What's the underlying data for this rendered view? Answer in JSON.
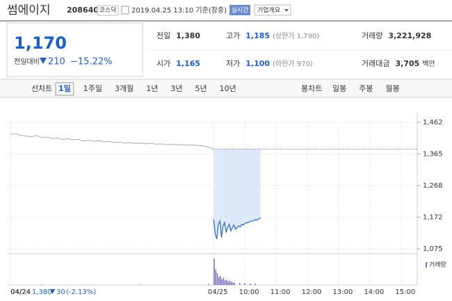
{
  "header": {
    "title": "썸에이지",
    "code": "208640",
    "market": "코스닥",
    "timestamp": "2019.04.25 13:10 기준(장중)",
    "realtime": "실시간",
    "company_info": "기업개요"
  },
  "quote": {
    "price": "1,170",
    "change_label": "전일대비",
    "change": "210",
    "change_pct": "−15.22%",
    "stats": [
      {
        "label": "전일",
        "value": "1,380"
      },
      {
        "label": "고가",
        "value": "1,185",
        "note": "(상한가 1,790)"
      },
      {
        "label": "거래량",
        "value": "3,221,928"
      },
      {
        "label": "시가",
        "value": "1,165"
      },
      {
        "label": "저가",
        "value": "1,100",
        "note": "(하한가 970)"
      },
      {
        "label": "거래대금",
        "value": "3,705",
        "note": "백만"
      }
    ]
  },
  "tabs": {
    "line_chart": "선차트",
    "line_periods": [
      "1일",
      "1주일",
      "3개월",
      "1년",
      "3년",
      "5년",
      "10년"
    ],
    "candle_chart": "봉차트",
    "candle_periods": [
      "일봉",
      "주봉",
      "월봉"
    ]
  },
  "footer": {
    "date": "04/24",
    "close": "1,380",
    "change": "30",
    "change_pct": "(-2.13%)"
  },
  "chart_data": {
    "type": "line",
    "series": [
      {
        "color": "#aaaaaa",
        "x": [
          0,
          10,
          20,
          30,
          40,
          50,
          60,
          70,
          80,
          90,
          100,
          110,
          120,
          130,
          140,
          150,
          160,
          170,
          180,
          190,
          200,
          210,
          220,
          230,
          240,
          250,
          260,
          270,
          280,
          290,
          300,
          310,
          320,
          330,
          340,
          350,
          360,
          370,
          380,
          390
        ],
        "values": [
          1425,
          1428,
          1422,
          1420,
          1418,
          1422,
          1415,
          1417,
          1412,
          1414,
          1410,
          1412,
          1408,
          1410,
          1405,
          1407,
          1404,
          1406,
          1402,
          1404,
          1400,
          1402,
          1398,
          1400,
          1397,
          1399,
          1396,
          1398,
          1395,
          1396,
          1394,
          1395,
          1393,
          1394,
          1392,
          1393,
          1391,
          1390,
          1386,
          1380
        ]
      },
      {
        "color": "#2f6fd6",
        "x": [
          390,
          393,
          396,
          399,
          402,
          405,
          408,
          411,
          414,
          417,
          420,
          423,
          426,
          429,
          432,
          435,
          438,
          441,
          444,
          447,
          450,
          453,
          456,
          459,
          462,
          465,
          468,
          471,
          474,
          477,
          480
        ],
        "values": [
          1165,
          1120,
          1105,
          1150,
          1160,
          1110,
          1145,
          1155,
          1125,
          1140,
          1150,
          1130,
          1140,
          1148,
          1135,
          1140,
          1145,
          1142,
          1150,
          1148,
          1152,
          1155,
          1155,
          1158,
          1160,
          1160,
          1162,
          1165,
          1163,
          1167,
          1170
        ]
      }
    ],
    "reference": 1380,
    "volume": {
      "name": "거래량",
      "color": "#7b68c9",
      "x": [
        60,
        150,
        250,
        380,
        391,
        394,
        397,
        400,
        403,
        406,
        409,
        412,
        415,
        418,
        421,
        424,
        427,
        430,
        440,
        450,
        460,
        470
      ],
      "values": [
        2,
        1,
        2,
        4,
        100,
        60,
        45,
        30,
        35,
        22,
        28,
        18,
        20,
        14,
        16,
        12,
        10,
        9,
        8,
        7,
        6,
        5
      ],
      "vlim": [
        0,
        100
      ]
    },
    "xlim": [
      -7,
      781
    ],
    "xticks": [
      {
        "value": 0,
        "label": "04/24"
      },
      {
        "value": 390,
        "label": "04/25"
      },
      {
        "value": 450,
        "label": "10:00"
      },
      {
        "value": 510,
        "label": "11:00"
      },
      {
        "value": 570,
        "label": "12:00"
      },
      {
        "value": 630,
        "label": "13:00"
      },
      {
        "value": 690,
        "label": "14:00"
      },
      {
        "value": 750,
        "label": "15:00"
      }
    ],
    "ylim": [
      1060,
      1496
    ],
    "yticks": [
      {
        "value": 1462,
        "label": "1,462"
      },
      {
        "value": 1365,
        "label": "1,365"
      },
      {
        "value": 1268,
        "label": "1,268"
      },
      {
        "value": 1172,
        "label": "1,172"
      },
      {
        "value": 1075,
        "label": "1,075"
      }
    ],
    "grid": true
  }
}
